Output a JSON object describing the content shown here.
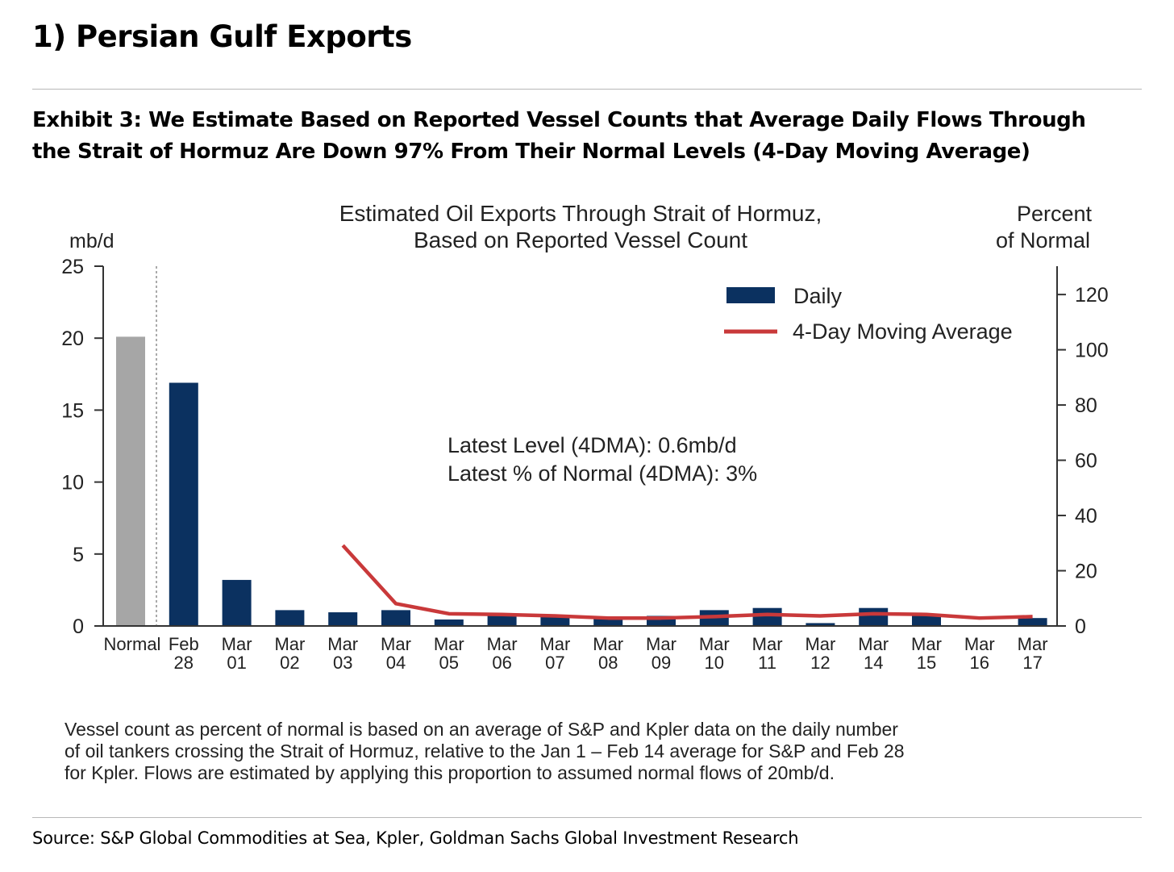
{
  "header": {
    "section_title": "1) Persian Gulf Exports",
    "exhibit_line1": "Exhibit 3: We Estimate Based on Reported Vessel Counts that Average Daily Flows Through",
    "exhibit_line2": "the Strait of Hormuz Are Down 97% From Their Normal Levels (4-Day Moving Average)"
  },
  "footer": {
    "note_lines": [
      "Vessel count as percent of normal is based on an average of S&P and Kpler data on the daily number",
      "of oil tankers crossing the Strait of Hormuz, relative to the Jan 1 – Feb 14 average for S&P and Feb 28",
      " for Kpler. Flows are estimated by applying this proportion to assumed normal flows of 20mb/d."
    ],
    "source": "Source: S&P Global Commodities at Sea, Kpler, Goldman Sachs Global Investment Research"
  },
  "colors": {
    "daily": "#0b3160",
    "normal": "#a6a6a6",
    "moving_average": "#c9393a",
    "axis": "#333333"
  },
  "chart_data": {
    "type": "bar",
    "title_line1": "Estimated Oil Exports Through Strait of Hormuz,",
    "title_line2": "Based on Reported Vessel Count",
    "ylabel_left": "mb/d",
    "ylabel_right_line1": "Percent",
    "ylabel_right_line2": "of Normal",
    "ylim_left": [
      0,
      25
    ],
    "yticks_left": [
      0,
      5,
      10,
      15,
      20,
      25
    ],
    "ylim_right": [
      0,
      125
    ],
    "yticks_right": [
      0,
      20,
      40,
      60,
      80,
      100,
      120
    ],
    "categories": [
      [
        "Normal",
        ""
      ],
      [
        "Feb",
        "28"
      ],
      [
        "Mar",
        "01"
      ],
      [
        "Mar",
        "02"
      ],
      [
        "Mar",
        "03"
      ],
      [
        "Mar",
        "04"
      ],
      [
        "Mar",
        "05"
      ],
      [
        "Mar",
        "06"
      ],
      [
        "Mar",
        "07"
      ],
      [
        "Mar",
        "08"
      ],
      [
        "Mar",
        "09"
      ],
      [
        "Mar",
        "10"
      ],
      [
        "Mar",
        "11"
      ],
      [
        "Mar",
        "12"
      ],
      [
        "Mar",
        "14"
      ],
      [
        "Mar",
        "15"
      ],
      [
        "Mar",
        "16"
      ],
      [
        "Mar",
        "17"
      ]
    ],
    "series": [
      {
        "name": "Normal",
        "kind": "bar",
        "color_key": "normal",
        "values": [
          20.1,
          null,
          null,
          null,
          null,
          null,
          null,
          null,
          null,
          null,
          null,
          null,
          null,
          null,
          null,
          null,
          null,
          null
        ]
      },
      {
        "name": "Daily",
        "kind": "bar",
        "color_key": "daily",
        "values": [
          null,
          16.9,
          3.2,
          1.1,
          0.95,
          1.1,
          0.45,
          0.85,
          0.7,
          0.55,
          0.7,
          1.1,
          1.25,
          0.2,
          1.25,
          0.8,
          0.0,
          0.55
        ]
      },
      {
        "name": "4-Day Moving Average",
        "kind": "line",
        "color_key": "moving_average",
        "values": [
          null,
          null,
          null,
          null,
          5.6,
          1.55,
          0.85,
          0.8,
          0.7,
          0.55,
          0.55,
          0.65,
          0.8,
          0.7,
          0.85,
          0.8,
          0.55,
          0.65
        ]
      }
    ],
    "legend": [
      "Daily",
      "4-Day Moving Average"
    ],
    "legend_position": "top-right",
    "annotation_line1": "Latest Level (4DMA): 0.6mb/d",
    "annotation_line2": "Latest % of Normal (4DMA): 3%",
    "separator_after_category": "Normal",
    "grid": false
  }
}
